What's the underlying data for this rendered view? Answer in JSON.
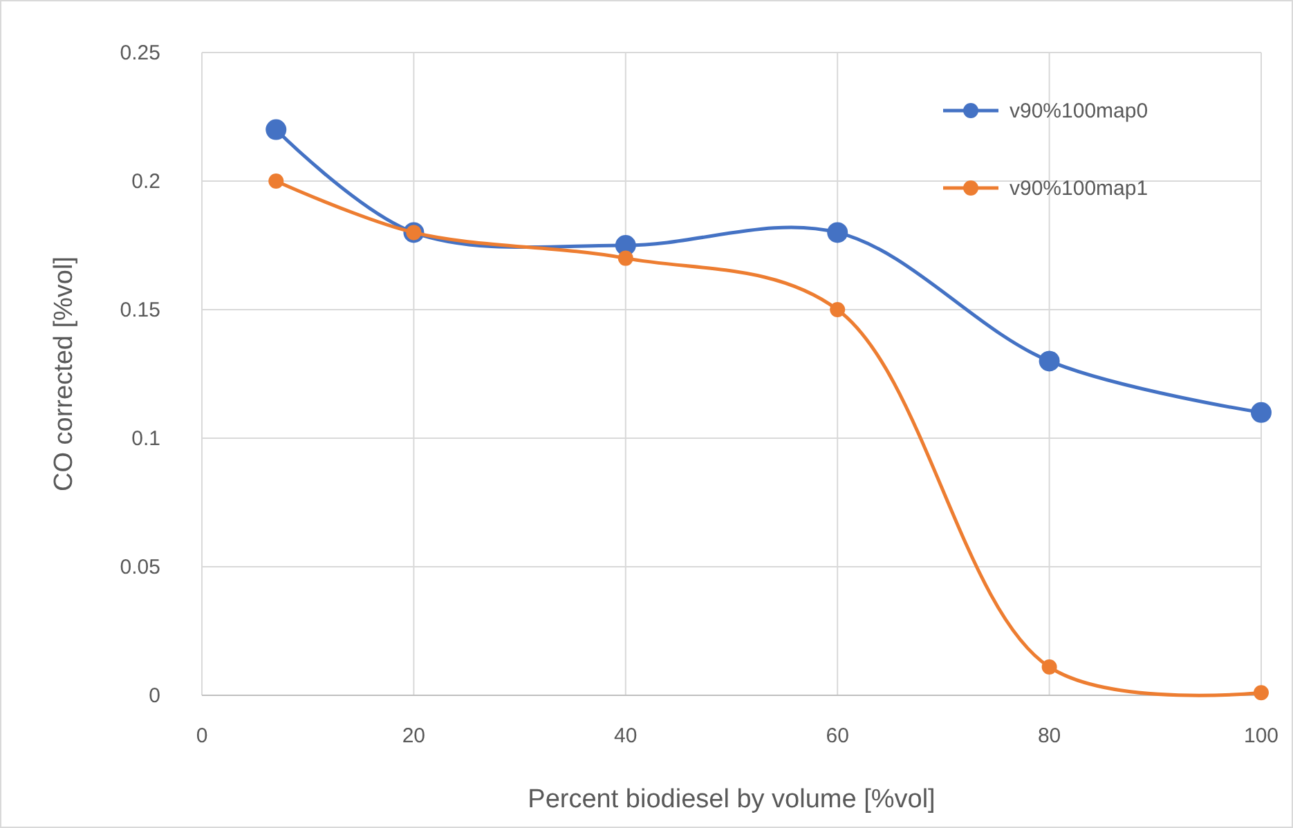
{
  "chart_data": {
    "type": "line",
    "xlabel": "Percent biodiesel by volume [%vol]",
    "ylabel": "CO corrected [%vol]",
    "x": [
      7,
      20,
      40,
      60,
      80,
      100
    ],
    "series": [
      {
        "name": "v90%100map0",
        "color": "#4472c4",
        "values": [
          0.22,
          0.18,
          0.175,
          0.18,
          0.13,
          0.11
        ]
      },
      {
        "name": "v90%100map1",
        "color": "#ed7d31",
        "values": [
          0.2,
          0.18,
          0.17,
          0.15,
          0.011,
          0.001
        ]
      }
    ],
    "xlim": [
      0,
      100
    ],
    "xticks": [
      0,
      20,
      40,
      60,
      80,
      100
    ],
    "ylim": [
      0,
      0.25
    ],
    "yticks": [
      0,
      0.05,
      0.1,
      0.15,
      0.2,
      0.25
    ],
    "grid": true,
    "legend": "top right",
    "marker": "circle",
    "line_style": "solid"
  }
}
